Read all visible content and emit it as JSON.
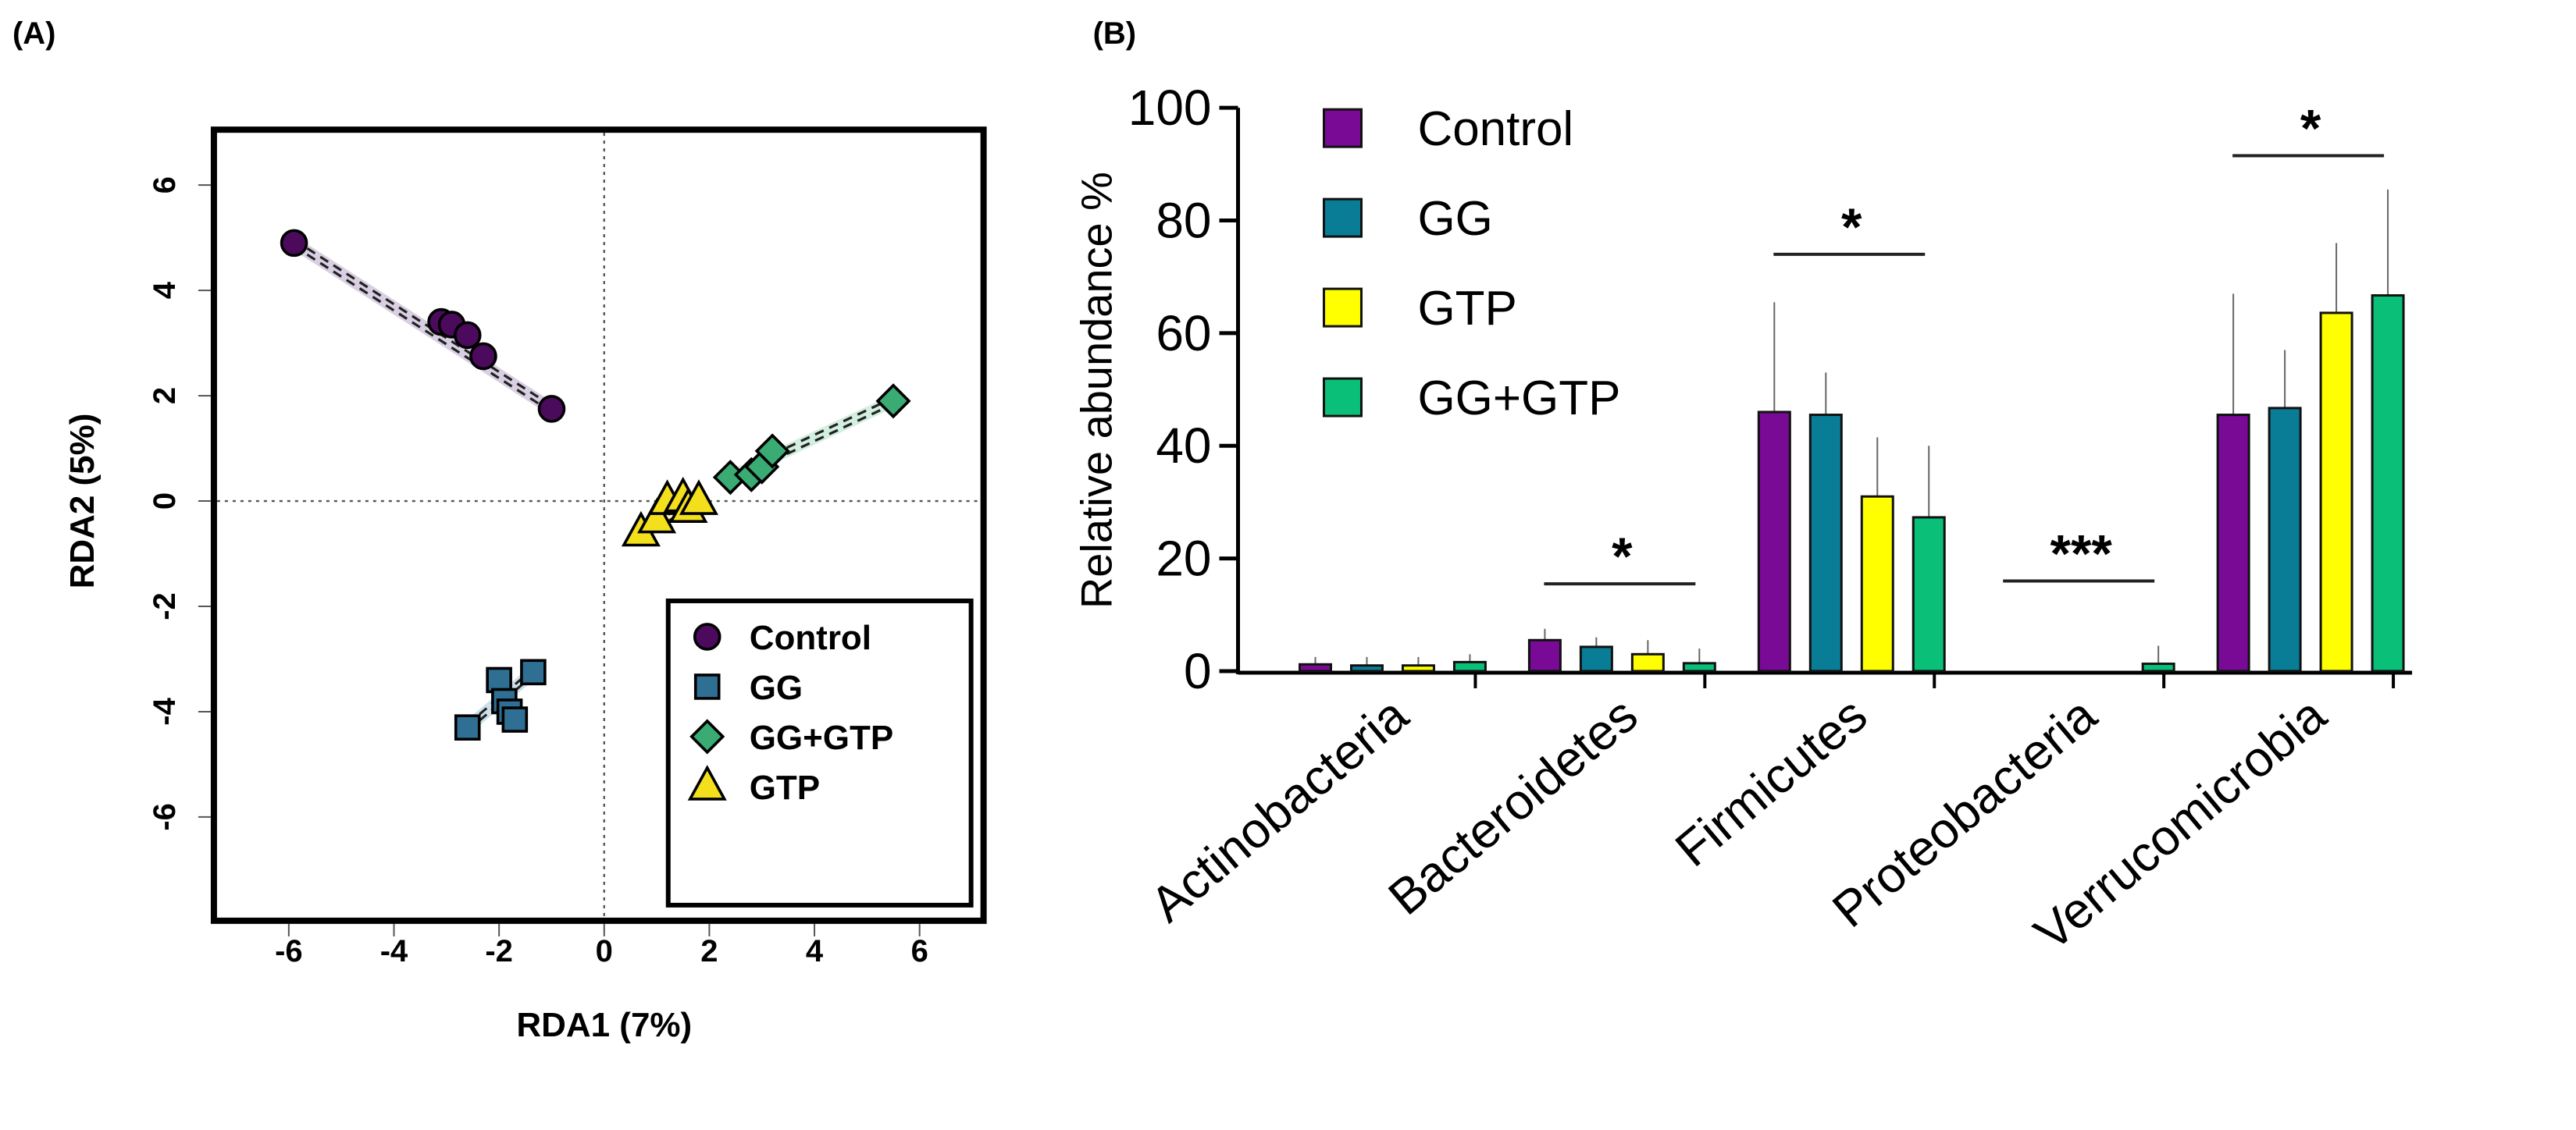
{
  "chart_data": [
    {
      "panel": "(A)",
      "type": "scatter",
      "xlabel": "RDA1 (7%)",
      "ylabel": "RDA2 (5%)",
      "xlim": [
        -7.5,
        7.3
      ],
      "ylim": [
        -7.8,
        7.0
      ],
      "xticks": [
        -6,
        -4,
        -2,
        0,
        2,
        4,
        6
      ],
      "yticks": [
        -6,
        -4,
        -2,
        0,
        2,
        4,
        6
      ],
      "reference_lines": {
        "x": 0,
        "y": 0
      },
      "legend_position": "bottom-right",
      "series": [
        {
          "name": "Control",
          "marker": "circle",
          "color": "#4b0a5c",
          "hull": "#d9cfe3",
          "points": [
            [
              -5.9,
              4.9
            ],
            [
              -3.1,
              3.4
            ],
            [
              -2.9,
              3.35
            ],
            [
              -2.6,
              3.15
            ],
            [
              -2.3,
              2.75
            ],
            [
              -1.0,
              1.75
            ]
          ]
        },
        {
          "name": "GG",
          "marker": "square",
          "color": "#2f6f93",
          "hull": "#cfe0ea",
          "points": [
            [
              -2.6,
              -4.3
            ],
            [
              -2.0,
              -3.4
            ],
            [
              -1.9,
              -3.8
            ],
            [
              -1.8,
              -4.0
            ],
            [
              -1.7,
              -4.15
            ],
            [
              -1.35,
              -3.25
            ]
          ]
        },
        {
          "name": "GG+GTP",
          "marker": "diamond",
          "color": "#3aab73",
          "hull": "#d3efe1",
          "points": [
            [
              2.4,
              0.45
            ],
            [
              2.8,
              0.5
            ],
            [
              3.0,
              0.65
            ],
            [
              3.2,
              0.95
            ],
            [
              5.5,
              1.9
            ]
          ]
        },
        {
          "name": "GTP",
          "marker": "triangle",
          "color": "#f3df1c",
          "hull": "#fbf5c8",
          "points": [
            [
              0.7,
              -0.6
            ],
            [
              1.0,
              -0.35
            ],
            [
              1.2,
              0.0
            ],
            [
              1.5,
              0.05
            ],
            [
              1.6,
              -0.15
            ],
            [
              1.8,
              0.0
            ]
          ]
        }
      ]
    },
    {
      "panel": "(B)",
      "type": "bar",
      "ylabel": "Relative abundance %",
      "ylim": [
        0,
        100
      ],
      "yticks": [
        0,
        20,
        40,
        60,
        80,
        100
      ],
      "legend_position": "top-left",
      "categories": [
        "Actinobacteria",
        "Bacteroidetes",
        "Firmicutes",
        "Proteobacteria",
        "Verrucomicrobia"
      ],
      "series": [
        {
          "name": "Control",
          "color": "#780a96",
          "values": [
            1.2,
            5.5,
            46.0,
            0.0,
            45.5
          ],
          "error_top": [
            2.5,
            7.5,
            65.5,
            0.0,
            67.0
          ]
        },
        {
          "name": "GG",
          "color": "#0a7d96",
          "values": [
            1.0,
            4.3,
            45.5,
            0.0,
            46.7
          ],
          "error_top": [
            2.5,
            6.0,
            53.0,
            0.0,
            57.0
          ]
        },
        {
          "name": "GTP",
          "color": "#ffff00",
          "values": [
            1.0,
            3.0,
            31.0,
            0.0,
            63.6
          ],
          "error_top": [
            2.5,
            5.5,
            41.5,
            0.0,
            76.0
          ]
        },
        {
          "name": "GG+GTP",
          "color": "#0abf78",
          "values": [
            1.6,
            1.4,
            27.3,
            1.3,
            66.7
          ],
          "error_top": [
            3.0,
            4.0,
            40.0,
            4.5,
            85.5
          ]
        }
      ],
      "significance": [
        {
          "category": "Bacteroidetes",
          "label": "*",
          "level": 15.5
        },
        {
          "category": "Firmicutes",
          "label": "*",
          "level": 74
        },
        {
          "category": "Proteobacteria",
          "label": "***",
          "level": 16
        },
        {
          "category": "Verrucomicrobia",
          "label": "*",
          "level": 91.5
        }
      ]
    }
  ]
}
